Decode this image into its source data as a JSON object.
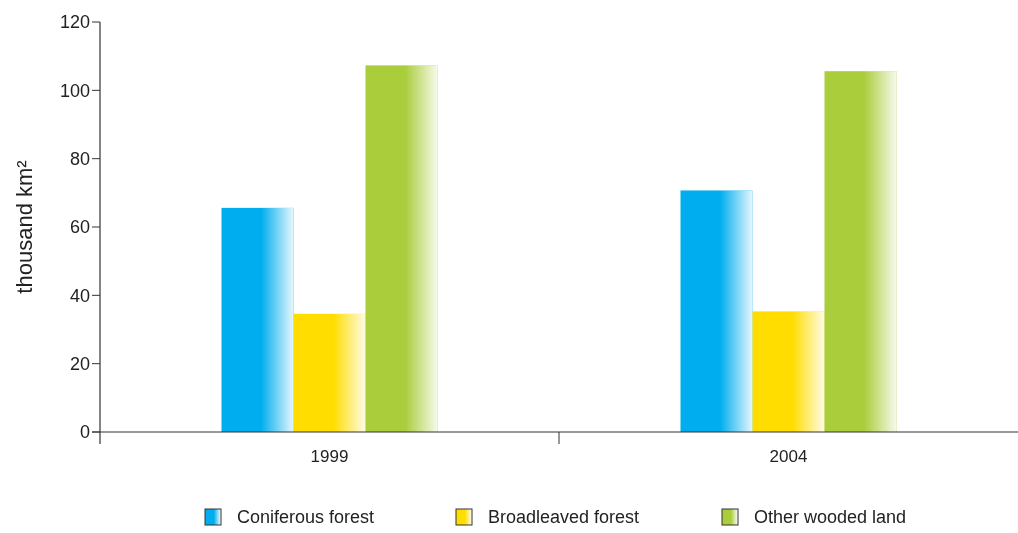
{
  "chart_data": {
    "type": "bar",
    "ylabel": "thousand km²",
    "categories": [
      "1999",
      "2004"
    ],
    "series": [
      {
        "name": "Coniferous forest",
        "color": "#00aeef",
        "values": [
          65.6,
          70.7
        ]
      },
      {
        "name": "Broadleaved forest",
        "color": "#ffdd00",
        "values": [
          34.6,
          35.3
        ]
      },
      {
        "name": "Other wooded land",
        "color": "#aacd3c",
        "values": [
          107.3,
          105.6
        ]
      }
    ],
    "ylim": [
      0,
      120
    ],
    "yticks": [
      0,
      20,
      40,
      60,
      80,
      100,
      120
    ],
    "grid": false,
    "legend": "bottom"
  }
}
